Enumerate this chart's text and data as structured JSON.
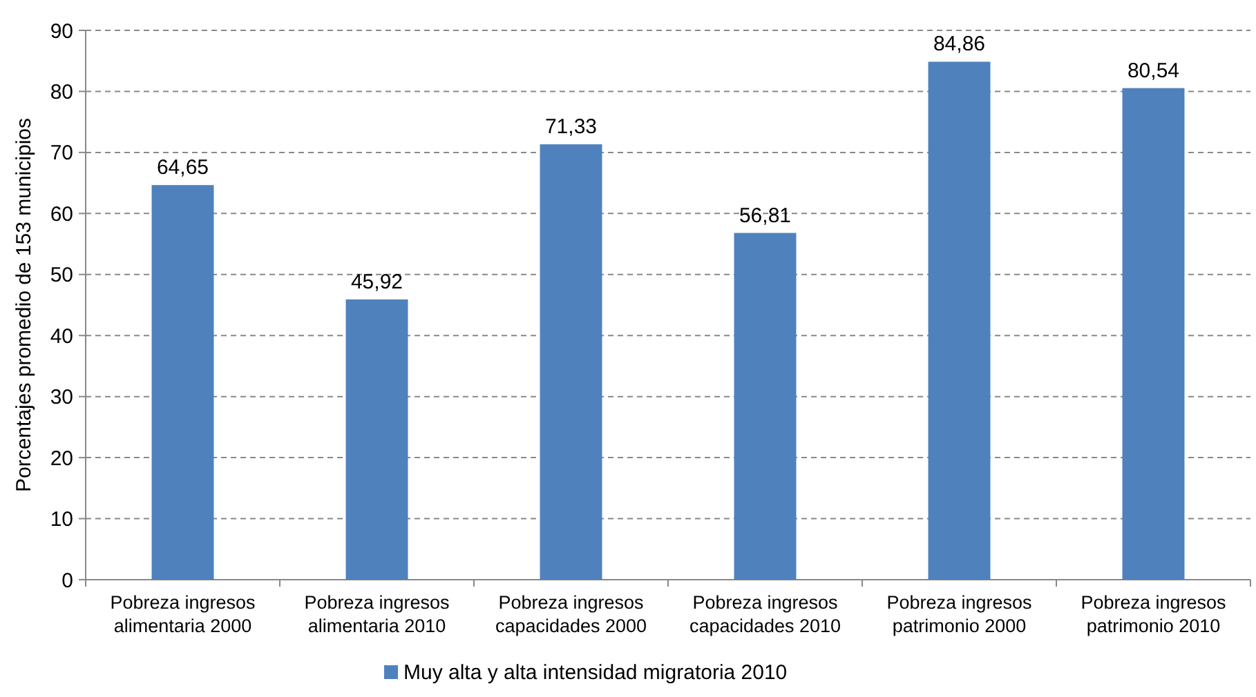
{
  "chart_data": {
    "type": "bar",
    "ylabel": "Porcentajes promedio de 153 municipios",
    "categories": [
      "Pobreza ingresos alimentaria 2000",
      "Pobreza ingresos alimentaria 2010",
      "Pobreza ingresos capacidades 2000",
      "Pobreza ingresos capacidades 2010",
      "Pobreza ingresos patrimonio 2000",
      "Pobreza ingresos patrimonio 2010"
    ],
    "series": [
      {
        "name": "Muy alta y alta intensidad migratoria 2010",
        "color": "#4f81bd",
        "values": [
          64.65,
          45.92,
          71.33,
          56.81,
          84.86,
          80.54
        ],
        "value_labels": [
          "64,65",
          "45,92",
          "71,33",
          "56,81",
          "84,86",
          "80,54"
        ]
      }
    ],
    "ylim": [
      0,
      90
    ],
    "yticks": [
      0,
      10,
      20,
      30,
      40,
      50,
      60,
      70,
      80,
      90
    ],
    "grid": "y",
    "legend": "bottom"
  }
}
